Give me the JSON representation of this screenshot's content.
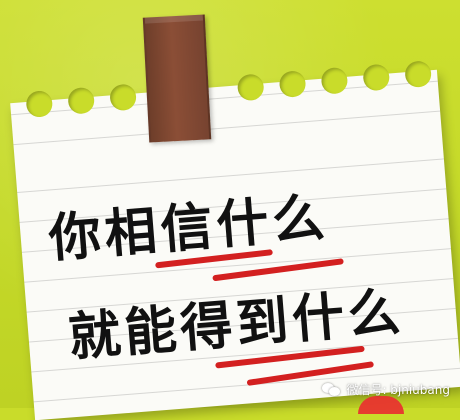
{
  "note": {
    "line1": "你相信什么",
    "line2": "就能得到什么"
  },
  "watermark": {
    "text": "微信号: bjniubang"
  },
  "colors": {
    "background": "#c9dc2a",
    "paper": "#fbfbf7",
    "tape": "#8b4e36",
    "underline": "#d32020",
    "ink": "#111111"
  }
}
